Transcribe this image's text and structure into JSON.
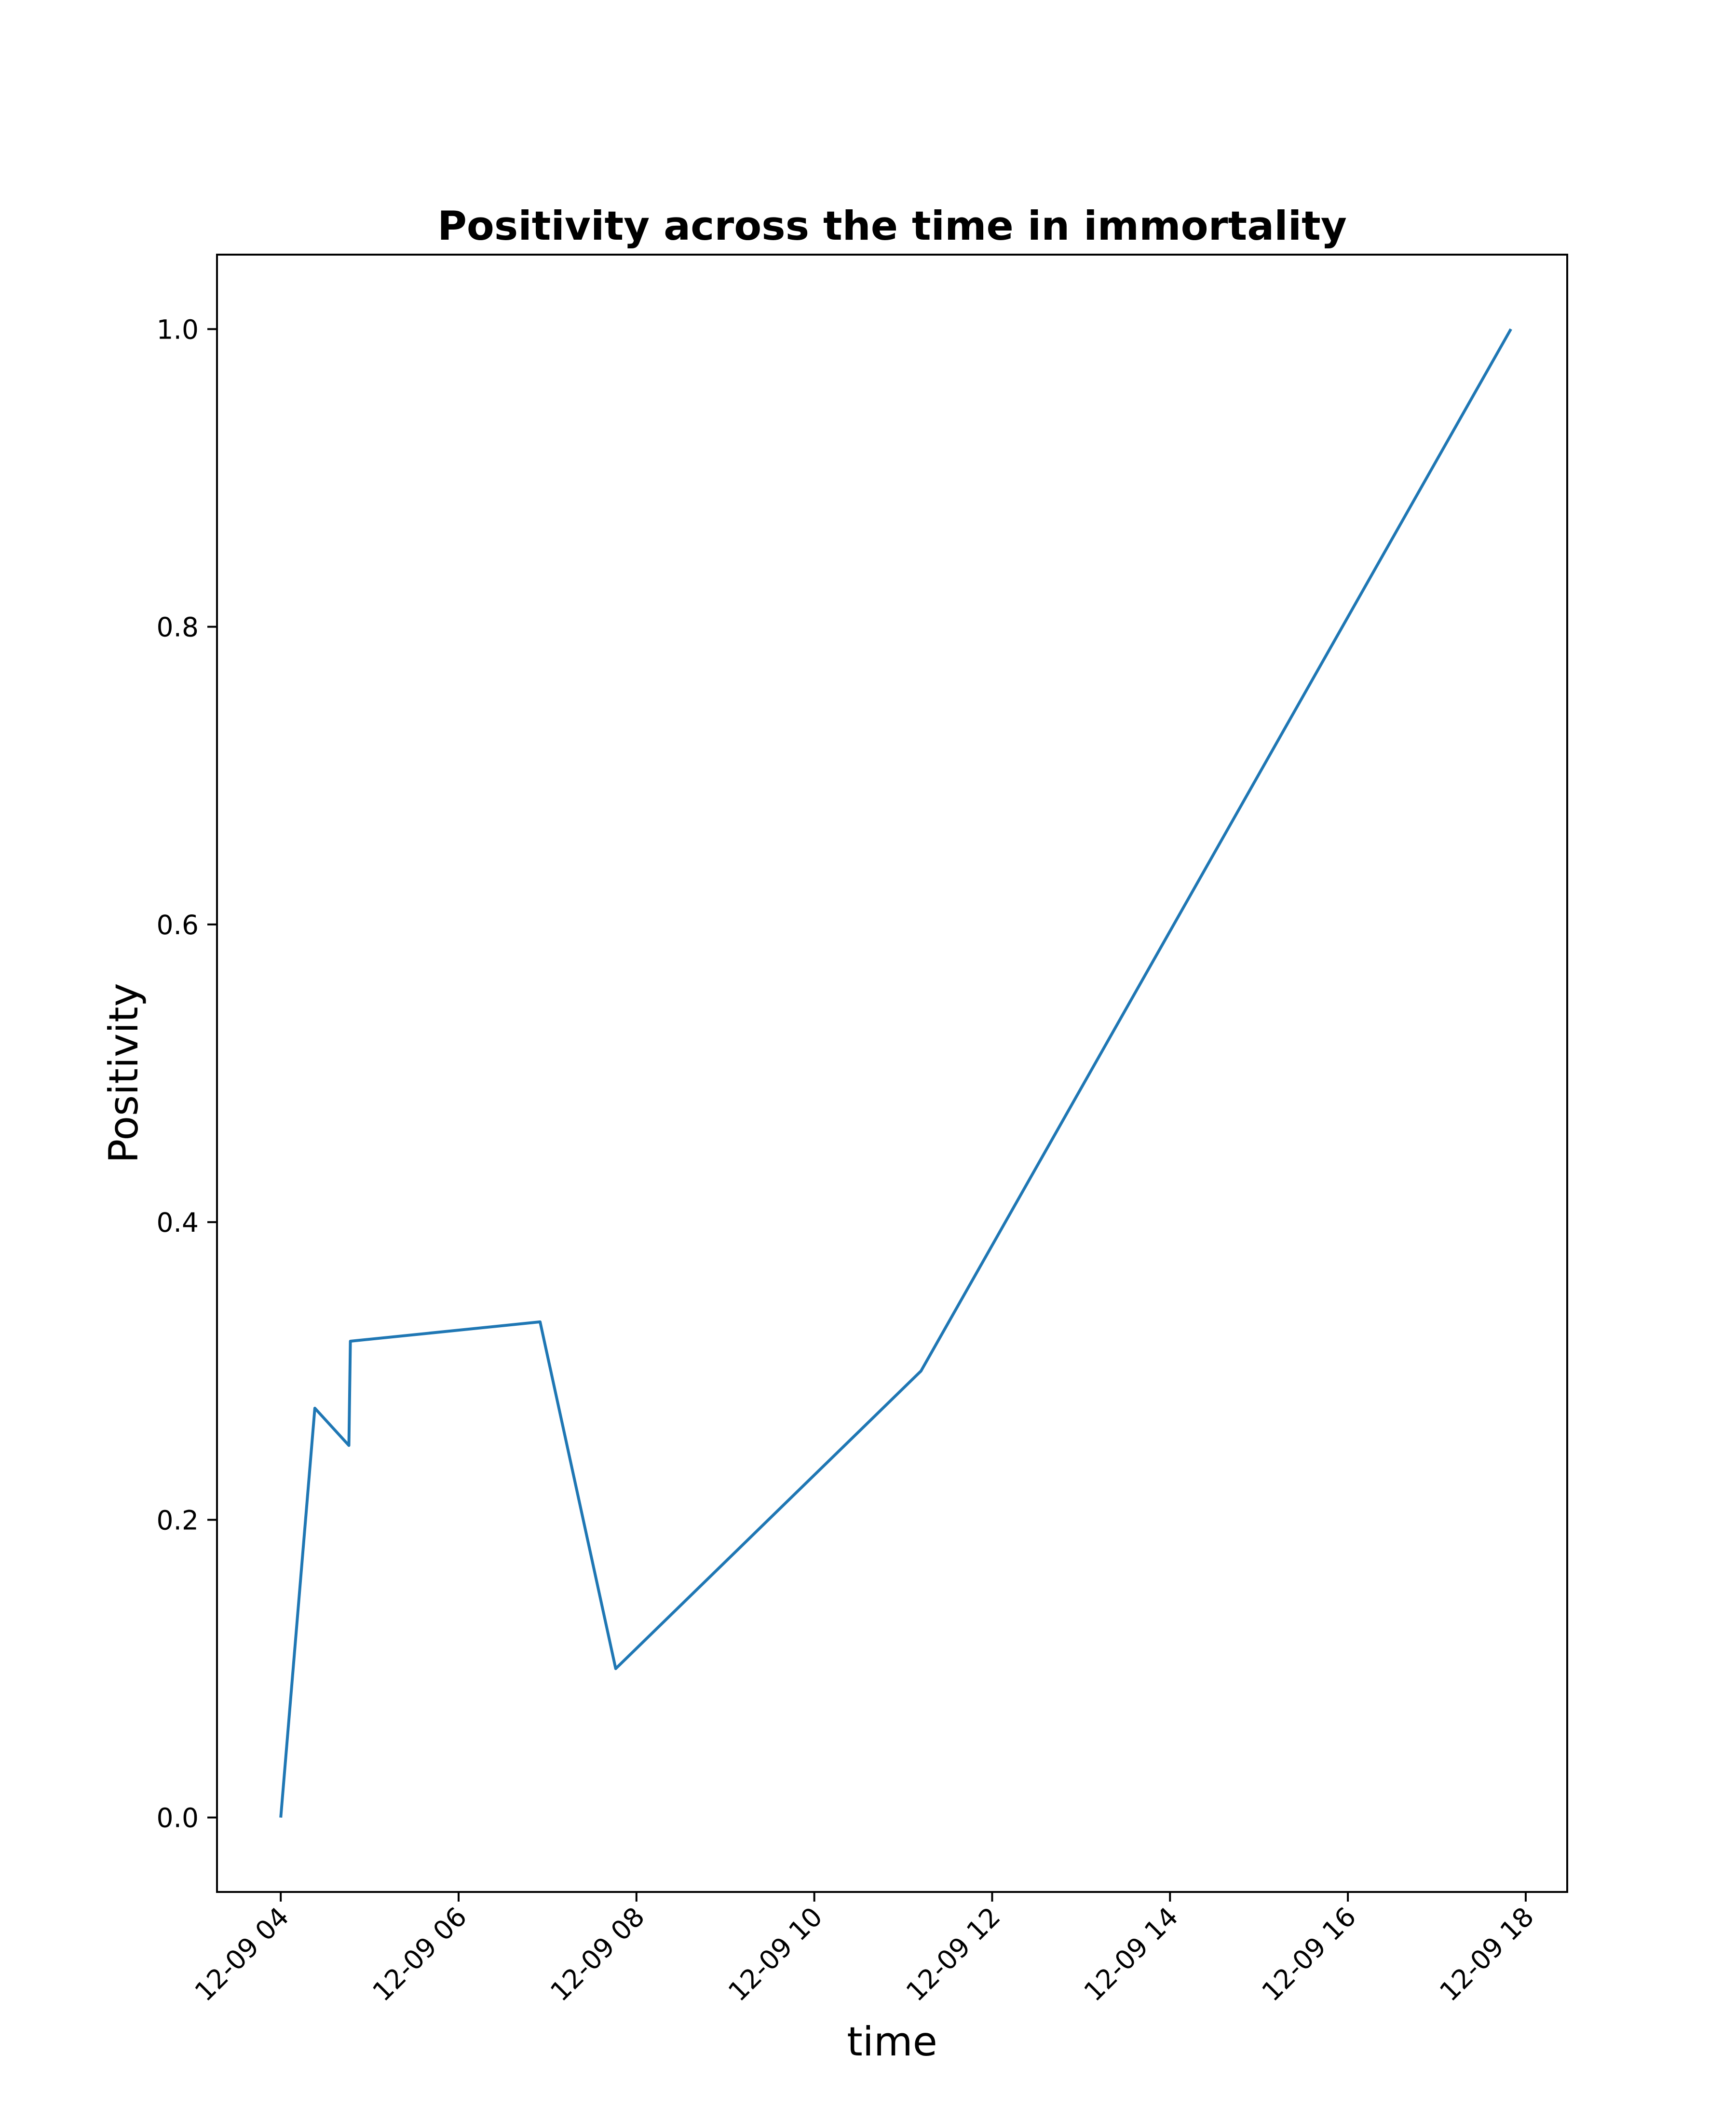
{
  "chart_data": {
    "type": "line",
    "title": "Positivity across the time in immortality",
    "xlabel": "time",
    "ylabel": "Positivity",
    "x": [
      "2021-12-09 04:00",
      "2021-12-09 04:23",
      "2021-12-09 04:46",
      "2021-12-09 04:47",
      "2021-12-09 06:55",
      "2021-12-09 07:46",
      "2021-12-09 11:12",
      "2021-12-09 17:50"
    ],
    "x_display_note": "",
    "series": [
      {
        "name": "",
        "color": "#1f77b4",
        "values": [
          0.0,
          0.275,
          0.25,
          0.32,
          0.333,
          0.1,
          0.3,
          1.0
        ]
      }
    ],
    "xlim": [
      "2021-12-09 03:17",
      "2021-12-09 18:28"
    ],
    "ylim": [
      -0.05,
      1.05
    ],
    "xticks": [
      "2021-12-09 04:00",
      "2021-12-09 06:00",
      "2021-12-09 08:00",
      "2021-12-09 10:00",
      "2021-12-09 12:00",
      "2021-12-09 14:00",
      "2021-12-09 16:00",
      "2021-12-09 18:00"
    ],
    "xtick_labels": [
      "12-09 04",
      "12-09 06",
      "12-09 08",
      "12-09 10",
      "12-09 12",
      "12-09 14",
      "12-09 16",
      "12-09 18"
    ],
    "yticks": [
      0.0,
      0.2,
      0.4,
      0.6,
      0.8,
      1.0
    ],
    "ytick_labels": [
      "0.0",
      "0.2",
      "0.4",
      "0.6",
      "0.8",
      "1.0"
    ],
    "grid": false,
    "legend": "none"
  }
}
